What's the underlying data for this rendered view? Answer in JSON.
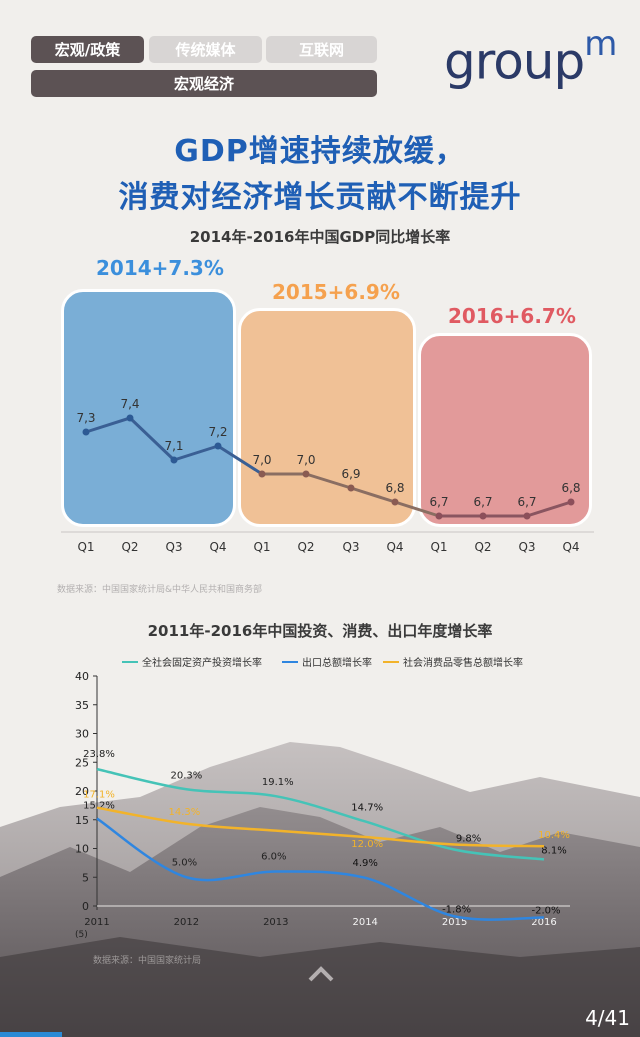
{
  "nav": {
    "tabs": [
      {
        "label": "宏观/政策",
        "active": true
      },
      {
        "label": "传统媒体",
        "active": false
      },
      {
        "label": "互联网",
        "active": false
      }
    ],
    "sub_tab": "宏观经济"
  },
  "logo": {
    "text": "group",
    "mark": "m"
  },
  "headline": {
    "line1": "GDP增速持续放缓，",
    "line2": "消费对经济增长贡献不断提升"
  },
  "colors": {
    "accent": "#1f5fb5",
    "y2014": "#2f7fd0",
    "y2015": "#f5a14e",
    "y2016": "#e05a62",
    "invest": "#45c3b7",
    "export": "#2f86e0",
    "retail": "#f2b32a"
  },
  "gdp_chart": {
    "title": "2014年-2016年中国GDP同比增长率",
    "source": "数据来源：中国国家统计局&中华人民共和国商务部",
    "year_labels": [
      "2014+7.3%",
      "2015+6.9%",
      "2016+6.7%"
    ],
    "quarters": [
      "Q1",
      "Q2",
      "Q3",
      "Q4",
      "Q1",
      "Q2",
      "Q3",
      "Q4",
      "Q1",
      "Q2",
      "Q3",
      "Q4"
    ],
    "values": [
      7.3,
      7.4,
      7.1,
      7.2,
      7.0,
      7.0,
      6.9,
      6.8,
      6.7,
      6.7,
      6.7,
      6.8
    ],
    "value_labels": [
      "7,3",
      "7,4",
      "7,1",
      "7,2",
      "7,0",
      "7,0",
      "6,9",
      "6,8",
      "6,7",
      "6,7",
      "6,7",
      "6,8"
    ]
  },
  "chart_data": [
    {
      "type": "line",
      "title": "2014年-2016年中国GDP同比增长率",
      "categories": [
        "Q1",
        "Q2",
        "Q3",
        "Q4",
        "Q1",
        "Q2",
        "Q3",
        "Q4",
        "Q1",
        "Q2",
        "Q3",
        "Q4"
      ],
      "series": [
        {
          "values": [
            7.3,
            7.4,
            7.1,
            7.2,
            7.0,
            7.0,
            6.9,
            6.8,
            6.7,
            6.7,
            6.7,
            6.8
          ]
        }
      ],
      "groups": [
        "2014+7.3%",
        "2015+6.9%",
        "2016+6.7%"
      ]
    },
    {
      "type": "line",
      "title": "2011年-2016年中国投资、消费、出口年度增长率",
      "x": [
        "2011",
        "2012",
        "2013",
        "2014",
        "2015",
        "2016"
      ],
      "ylabel": "(5)",
      "ylim": [
        0,
        40
      ],
      "yticks": [
        "0",
        "5",
        "10",
        "15",
        "20",
        "25",
        "30",
        "35",
        "40"
      ],
      "series": [
        {
          "name": "全社会固定资产投资增长率",
          "values": [
            23.8,
            20.3,
            19.1,
            14.7,
            9.8,
            8.1
          ],
          "labels": [
            "23.8%",
            "20.3%",
            "19.1%",
            "14.7%",
            "9.8%",
            "8.1%"
          ]
        },
        {
          "name": "出口总额增长率",
          "values": [
            15.2,
            5.0,
            6.0,
            4.9,
            -1.8,
            -2.0
          ],
          "labels": [
            "15.2%",
            "5.0%",
            "6.0%",
            "4.9%",
            "-1.8%",
            "-2.0%"
          ]
        },
        {
          "name": "社会消费品零售总额增长率",
          "values": [
            17.1,
            14.3,
            13.1,
            12.0,
            10.7,
            10.4
          ],
          "labels": [
            "17.1%",
            "14.3%",
            "",
            "12.0%",
            "",
            "10.4%"
          ]
        }
      ],
      "source": "数据来源：中国国家统计局",
      "legend_position": "top"
    }
  ],
  "footer": {
    "page": "4/41",
    "progress": 0.0976
  }
}
